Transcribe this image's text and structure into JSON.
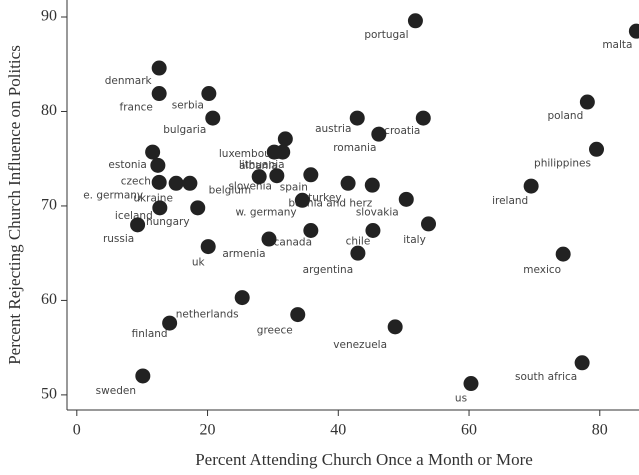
{
  "chart_data": {
    "type": "scatter",
    "x_label": "Percent Attending Church Once a Month or More",
    "y_label": "Percent Rejecting Church Influence on Politics",
    "labels": [
      "portugal",
      "malta",
      "denmark",
      "france",
      "serbia",
      "bulgaria",
      "austria",
      "romania",
      "croatia",
      "poland",
      "philippines",
      "ireland",
      "mexico",
      "south africa",
      "us",
      "venezuela",
      "greece",
      "netherlands",
      "finland",
      "sweden",
      "russia",
      "iceland",
      "hungary",
      "estonia",
      "czech",
      "e. germany",
      "ukraine",
      "belgium",
      "slovenia",
      "spain",
      "lithuania",
      "luxembourg",
      "albania",
      "turkey",
      "bosnia and herz",
      "w. germany",
      "slovakia",
      "chile",
      "italy",
      "armenia",
      "canada",
      "uk",
      "argentina",
      null
    ],
    "x": [
      51.8,
      85.6,
      12.6,
      12.6,
      20.2,
      20.8,
      42.9,
      46.2,
      53.0,
      78.1,
      79.5,
      69.5,
      74.4,
      77.3,
      60.3,
      48.7,
      33.8,
      25.3,
      14.2,
      10.1,
      9.3,
      12.7,
      18.5,
      11.6,
      12.4,
      12.6,
      15.2,
      17.3,
      27.9,
      30.6,
      31.5,
      30.2,
      31.9,
      35.8,
      34.5,
      41.5,
      50.4,
      45.3,
      53.8,
      29.4,
      35.8,
      20.1,
      43.0,
      45.2
    ],
    "y": [
      89.6,
      88.5,
      84.6,
      81.9,
      81.9,
      79.3,
      79.3,
      77.6,
      79.3,
      81.0,
      76.0,
      72.1,
      64.9,
      53.4,
      51.2,
      57.2,
      58.5,
      60.3,
      57.6,
      52.0,
      68.0,
      69.8,
      69.8,
      75.7,
      74.3,
      72.5,
      72.4,
      72.4,
      73.1,
      73.2,
      75.7,
      75.7,
      77.1,
      73.3,
      70.6,
      72.4,
      70.7,
      67.4,
      68.1,
      66.5,
      67.4,
      65.7,
      65.0,
      72.2
    ],
    "color": "#222222",
    "xlim": [
      -1.5,
      86
    ],
    "xticks": [
      0,
      20,
      40,
      60,
      80
    ],
    "ylim": [
      48.4,
      91.8
    ],
    "yticks": [
      50,
      60,
      70,
      80,
      90
    ]
  }
}
